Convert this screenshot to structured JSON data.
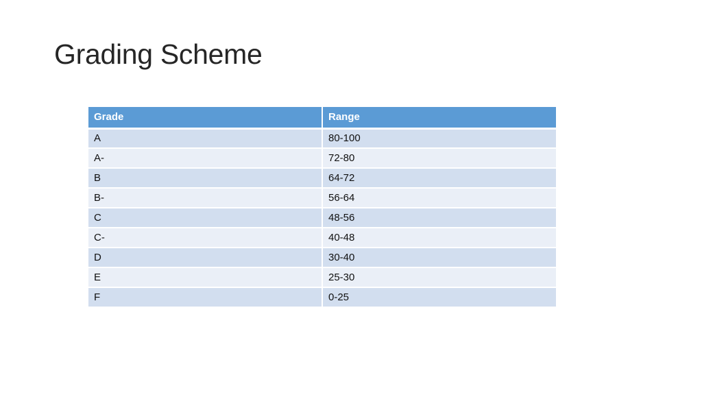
{
  "slide": {
    "title": "Grading Scheme"
  },
  "table": {
    "headers": {
      "grade": "Grade",
      "range": "Range"
    },
    "rows": [
      {
        "grade": "A",
        "range": "80-100"
      },
      {
        "grade": "A-",
        "range": "72-80"
      },
      {
        "grade": "B",
        "range": "64-72"
      },
      {
        "grade": "B-",
        "range": "56-64"
      },
      {
        "grade": "C",
        "range": "48-56"
      },
      {
        "grade": "C-",
        "range": "40-48"
      },
      {
        "grade": "D",
        "range": "30-40"
      },
      {
        "grade": "E",
        "range": "25-30"
      },
      {
        "grade": "F",
        "range": "0-25"
      }
    ]
  },
  "colors": {
    "header_bg": "#5b9bd5",
    "row_odd_bg": "#d2deef",
    "row_even_bg": "#eaeff7"
  }
}
